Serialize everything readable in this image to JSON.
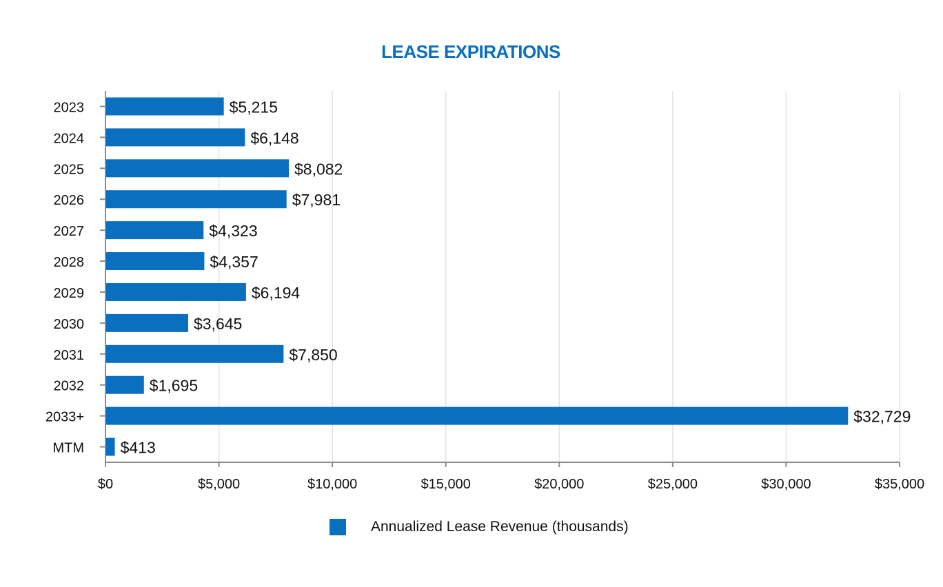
{
  "chart_data": {
    "type": "bar",
    "orientation": "horizontal",
    "title": "LEASE EXPIRATIONS",
    "categories": [
      "2023",
      "2024",
      "2025",
      "2026",
      "2027",
      "2028",
      "2029",
      "2030",
      "2031",
      "2032",
      "2033+",
      "MTM"
    ],
    "series": [
      {
        "name": "Annualized Lease Revenue (thousands)",
        "values": [
          5215,
          6148,
          8082,
          7981,
          4323,
          4357,
          6194,
          3645,
          7850,
          1695,
          32729,
          413
        ],
        "data_labels": [
          "$5,215",
          "$6,148",
          "$8,082",
          "$7,981",
          "$4,323",
          "$4,357",
          "$6,194",
          "$3,645",
          "$7,850",
          "$1,695",
          "$32,729",
          "$413"
        ]
      }
    ],
    "xlim": [
      0,
      35000
    ],
    "x_ticks": [
      0,
      5000,
      10000,
      15000,
      20000,
      25000,
      30000,
      35000
    ],
    "x_tick_labels": [
      "$0",
      "$5,000",
      "$10,000",
      "$15,000",
      "$20,000",
      "$25,000",
      "$30,000",
      "$35,000"
    ],
    "xlabel": "",
    "ylabel": "",
    "grid": "vertical",
    "legend_position": "bottom-center"
  },
  "colors": {
    "bar": "#0a6fbf",
    "title": "#0a6fbf",
    "grid": "#e2e2e2",
    "axis": "#8a8a8a",
    "text": "#111111"
  }
}
